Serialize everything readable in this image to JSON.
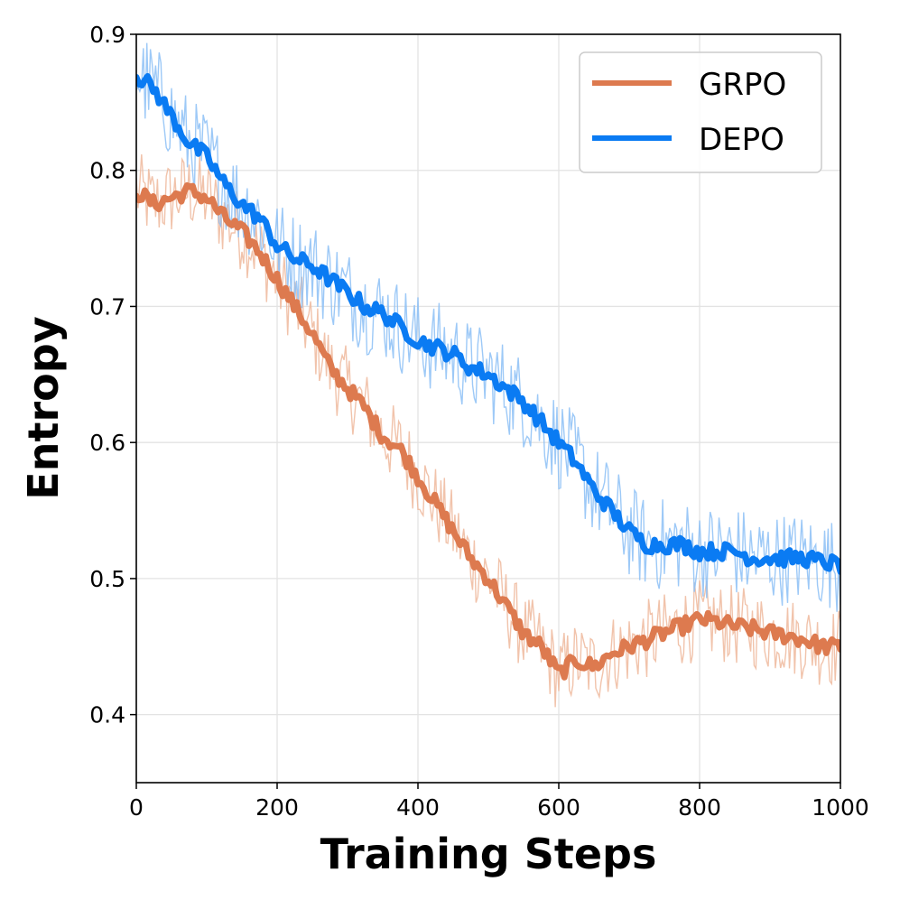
{
  "chart_data": {
    "type": "line",
    "title": "",
    "xlabel": "Training Steps",
    "ylabel": "Entropy",
    "xlim": [
      0,
      1000
    ],
    "ylim": [
      0.35,
      0.9
    ],
    "xticks": [
      0,
      200,
      400,
      600,
      800,
      1000
    ],
    "yticks": [
      0.4,
      0.5,
      0.6,
      0.7,
      0.8,
      0.9
    ],
    "xtick_labels": [
      "0",
      "200",
      "400",
      "600",
      "800",
      "1000"
    ],
    "ytick_labels": [
      "0.4",
      "0.5",
      "0.6",
      "0.7",
      "0.8",
      "0.9"
    ],
    "grid": true,
    "legend_position": "top-right",
    "raw_noise_amplitude_note": "faint raw curves shown behind smoothed lines",
    "series": [
      {
        "name": "GRPO",
        "color": "#dd7a4f",
        "raw_color": "#efb89c",
        "x": [
          0,
          25,
          50,
          75,
          100,
          125,
          150,
          175,
          200,
          225,
          250,
          275,
          300,
          325,
          350,
          375,
          400,
          425,
          450,
          475,
          500,
          525,
          550,
          575,
          600,
          625,
          650,
          675,
          700,
          725,
          750,
          775,
          800,
          825,
          850,
          875,
          900,
          925,
          950,
          975,
          1000
        ],
        "values": [
          0.785,
          0.775,
          0.78,
          0.785,
          0.78,
          0.765,
          0.755,
          0.74,
          0.72,
          0.7,
          0.68,
          0.655,
          0.64,
          0.625,
          0.605,
          0.595,
          0.575,
          0.555,
          0.535,
          0.515,
          0.5,
          0.48,
          0.46,
          0.45,
          0.43,
          0.44,
          0.435,
          0.445,
          0.45,
          0.455,
          0.46,
          0.465,
          0.47,
          0.468,
          0.465,
          0.463,
          0.46,
          0.458,
          0.455,
          0.45,
          0.45
        ],
        "noise": 0.03
      },
      {
        "name": "DEPO",
        "color": "#0a7bf3",
        "raw_color": "#8cc0f6",
        "x": [
          0,
          25,
          50,
          75,
          100,
          125,
          150,
          175,
          200,
          225,
          250,
          275,
          300,
          325,
          350,
          375,
          400,
          425,
          450,
          475,
          500,
          525,
          550,
          575,
          600,
          625,
          650,
          675,
          700,
          725,
          750,
          775,
          800,
          825,
          850,
          875,
          900,
          925,
          950,
          975,
          1000
        ],
        "values": [
          0.87,
          0.86,
          0.84,
          0.82,
          0.81,
          0.79,
          0.775,
          0.765,
          0.745,
          0.735,
          0.73,
          0.72,
          0.71,
          0.7,
          0.695,
          0.685,
          0.675,
          0.67,
          0.665,
          0.655,
          0.65,
          0.64,
          0.63,
          0.615,
          0.6,
          0.585,
          0.565,
          0.55,
          0.535,
          0.525,
          0.525,
          0.525,
          0.52,
          0.52,
          0.52,
          0.515,
          0.515,
          0.515,
          0.515,
          0.512,
          0.51
        ],
        "noise": 0.035
      }
    ]
  }
}
